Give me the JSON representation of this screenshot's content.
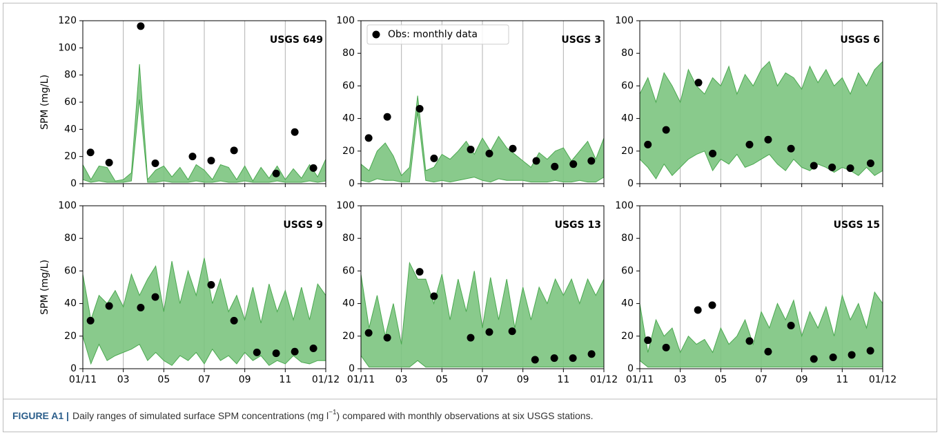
{
  "chart_data": [
    {
      "type": "range",
      "title": "USGS 649",
      "ylabel": "SPM (mg/L)",
      "xlim": [
        1,
        13
      ],
      "xticks": [
        1,
        3,
        5,
        7,
        9,
        11,
        13
      ],
      "xticklabels": false,
      "xgrid": true,
      "ylim": [
        0,
        120
      ],
      "yticks": [
        0,
        20,
        40,
        60,
        80,
        100,
        120
      ],
      "band": {
        "color": "#7cc47f",
        "edge": "#4aa84f",
        "x": [
          1,
          1.4,
          1.8,
          2.2,
          2.6,
          3,
          3.4,
          3.8,
          4.2,
          4.6,
          5,
          5.4,
          5.8,
          6.2,
          6.6,
          7,
          7.4,
          7.8,
          8.2,
          8.6,
          9,
          9.4,
          9.8,
          10.2,
          10.6,
          11,
          11.4,
          11.8,
          12.2,
          12.6,
          13
        ],
        "low": [
          3,
          1,
          2,
          1,
          1,
          1,
          2,
          62,
          1,
          1,
          2,
          1,
          1,
          1,
          2,
          1,
          1,
          2,
          1,
          1,
          2,
          1,
          1,
          1,
          2,
          1,
          1,
          1,
          2,
          1,
          2
        ],
        "high": [
          14,
          3,
          13,
          12,
          2,
          3,
          8,
          88,
          3,
          10,
          13,
          5,
          12,
          3,
          14,
          10,
          3,
          14,
          12,
          3,
          13,
          2,
          12,
          4,
          13,
          3,
          11,
          4,
          14,
          5,
          18
        ]
      },
      "series": [
        {
          "color": "#000000",
          "x": [
            1.38,
            2.3,
            3.86,
            4.58,
            6.42,
            7.34,
            8.47,
            10.55,
            11.47,
            12.39
          ],
          "values": [
            23,
            15.5,
            116,
            15,
            20,
            17,
            24.5,
            7.5,
            38,
            11.5
          ]
        }
      ]
    },
    {
      "type": "range",
      "title": "USGS 3",
      "xlim": [
        1,
        13
      ],
      "xticks": [
        1,
        3,
        5,
        7,
        9,
        11,
        13
      ],
      "xticklabels": false,
      "xgrid": true,
      "ylim": [
        0,
        100
      ],
      "yticks": [
        0,
        20,
        40,
        60,
        80,
        100
      ],
      "legend": "upper left",
      "band": {
        "color": "#7cc47f",
        "edge": "#4aa84f",
        "x": [
          1,
          1.4,
          1.8,
          2.2,
          2.6,
          3,
          3.4,
          3.8,
          4.2,
          4.6,
          5,
          5.4,
          5.8,
          6.2,
          6.6,
          7,
          7.4,
          7.8,
          8.2,
          8.6,
          9,
          9.4,
          9.8,
          10.2,
          10.6,
          11,
          11.4,
          11.8,
          12.2,
          12.6,
          13
        ],
        "low": [
          2,
          1,
          3,
          2,
          2,
          1,
          1,
          44,
          2,
          1,
          2,
          1,
          2,
          3,
          4,
          2,
          1,
          3,
          2,
          2,
          2,
          1,
          1,
          1,
          2,
          1,
          1,
          2,
          1,
          1,
          4
        ],
        "high": [
          12,
          8,
          20,
          25,
          17,
          5,
          10,
          54,
          8,
          10,
          18,
          15,
          20,
          26,
          18,
          28,
          20,
          29,
          22,
          18,
          14,
          10,
          19,
          15,
          20,
          22,
          14,
          20,
          26,
          15,
          28
        ]
      },
      "series": [
        {
          "name": "Obs: monthly data",
          "color": "#000000",
          "x": [
            1.38,
            2.3,
            3.9,
            4.61,
            6.42,
            7.34,
            8.5,
            9.66,
            10.57,
            11.49,
            12.38
          ],
          "values": [
            28,
            41,
            46,
            15.5,
            21,
            18.5,
            21.5,
            14,
            10.5,
            12,
            14
          ]
        }
      ]
    },
    {
      "type": "range",
      "title": "USGS 6",
      "xlim": [
        1,
        13
      ],
      "xticks": [
        1,
        3,
        5,
        7,
        9,
        11,
        13
      ],
      "xticklabels": false,
      "xgrid": true,
      "ylim": [
        0,
        100
      ],
      "yticks": [
        0,
        20,
        40,
        60,
        80,
        100
      ],
      "band": {
        "color": "#7cc47f",
        "edge": "#4aa84f",
        "x": [
          1,
          1.4,
          1.8,
          2.2,
          2.6,
          3,
          3.4,
          3.8,
          4.2,
          4.6,
          5,
          5.4,
          5.8,
          6.2,
          6.6,
          7,
          7.4,
          7.8,
          8.2,
          8.6,
          9,
          9.4,
          9.8,
          10.2,
          10.6,
          11,
          11.4,
          11.8,
          12.2,
          12.6,
          13
        ],
        "low": [
          15,
          10,
          3,
          12,
          5,
          10,
          15,
          18,
          20,
          8,
          15,
          12,
          18,
          10,
          12,
          15,
          18,
          12,
          8,
          15,
          10,
          8,
          12,
          10,
          7,
          10,
          8,
          5,
          10,
          5,
          8
        ],
        "high": [
          55,
          65,
          50,
          68,
          60,
          50,
          70,
          60,
          55,
          65,
          60,
          72,
          55,
          67,
          60,
          70,
          75,
          60,
          68,
          65,
          58,
          72,
          62,
          70,
          60,
          65,
          55,
          68,
          60,
          70,
          75
        ]
      },
      "series": [
        {
          "color": "#000000",
          "x": [
            1.4,
            2.3,
            3.9,
            4.6,
            6.42,
            7.34,
            8.47,
            9.6,
            10.5,
            11.4,
            12.4
          ],
          "values": [
            24,
            33,
            62,
            18.5,
            24,
            27,
            21.5,
            11,
            10,
            9.5,
            12.5
          ]
        }
      ]
    },
    {
      "type": "range",
      "title": "USGS 9",
      "ylabel": "SPM (mg/L)",
      "xlim": [
        1,
        13
      ],
      "xticks": [
        {
          "value": 1,
          "label": "01/11"
        },
        {
          "value": 3,
          "label": "03"
        },
        {
          "value": 5,
          "label": "05"
        },
        {
          "value": 7,
          "label": "07"
        },
        {
          "value": 9,
          "label": "09"
        },
        11,
        {
          "value": 13,
          "label": "01/12"
        }
      ],
      "xticklabels": true,
      "xgrid": true,
      "ylim": [
        0,
        100
      ],
      "yticks": [
        0,
        20,
        40,
        60,
        80,
        100
      ],
      "band": {
        "color": "#7cc47f",
        "edge": "#4aa84f",
        "x": [
          1,
          1.4,
          1.8,
          2.2,
          2.6,
          3,
          3.4,
          3.8,
          4.2,
          4.6,
          5,
          5.4,
          5.8,
          6.2,
          6.6,
          7,
          7.4,
          7.8,
          8.2,
          8.6,
          9,
          9.4,
          9.8,
          10.2,
          10.6,
          11,
          11.4,
          11.8,
          12.2,
          12.6,
          13
        ],
        "low": [
          20,
          3,
          15,
          5,
          8,
          10,
          12,
          15,
          5,
          10,
          5,
          2,
          8,
          5,
          10,
          3,
          12,
          5,
          8,
          3,
          10,
          5,
          8,
          2,
          5,
          3,
          8,
          4,
          3,
          5,
          5
        ],
        "high": [
          58,
          30,
          45,
          40,
          48,
          38,
          58,
          45,
          55,
          63,
          35,
          66,
          40,
          60,
          45,
          68,
          40,
          55,
          35,
          45,
          30,
          50,
          28,
          52,
          35,
          48,
          30,
          50,
          30,
          52,
          45
        ]
      },
      "series": [
        {
          "color": "#000000",
          "x": [
            1.38,
            2.3,
            3.86,
            4.58,
            7.34,
            8.47,
            9.6,
            10.55,
            11.47,
            12.39
          ],
          "values": [
            29.5,
            38.5,
            37.5,
            44,
            51.5,
            29.5,
            10,
            9.5,
            10.5,
            12.5
          ]
        }
      ]
    },
    {
      "type": "range",
      "title": "USGS 13",
      "xlim": [
        1,
        13
      ],
      "xticks": [
        {
          "value": 1,
          "label": "01/11"
        },
        {
          "value": 3,
          "label": "03"
        },
        {
          "value": 5,
          "label": "05"
        },
        {
          "value": 7,
          "label": "07"
        },
        {
          "value": 9,
          "label": "09"
        },
        11,
        {
          "value": 13,
          "label": "01/12"
        }
      ],
      "xticklabels": true,
      "xgrid": true,
      "ylim": [
        0,
        100
      ],
      "yticks": [
        0,
        20,
        40,
        60,
        80,
        100
      ],
      "band": {
        "color": "#7cc47f",
        "edge": "#4aa84f",
        "x": [
          1,
          1.4,
          1.8,
          2.2,
          2.6,
          3,
          3.4,
          3.8,
          4.2,
          4.6,
          5,
          5.4,
          5.8,
          6.2,
          6.6,
          7,
          7.4,
          7.8,
          8.2,
          8.6,
          9,
          9.4,
          9.8,
          10.2,
          10.6,
          11,
          11.4,
          11.8,
          12.2,
          12.6,
          13
        ],
        "low": [
          8,
          1,
          1,
          1,
          1,
          1,
          1,
          5,
          1,
          1,
          1,
          1,
          1,
          1,
          1,
          1,
          1,
          1,
          1,
          1,
          1,
          1,
          1,
          1,
          1,
          1,
          1,
          1,
          1,
          1,
          1
        ],
        "high": [
          58,
          25,
          45,
          20,
          40,
          15,
          65,
          55,
          55,
          40,
          58,
          30,
          55,
          35,
          60,
          25,
          56,
          30,
          55,
          25,
          50,
          30,
          50,
          40,
          55,
          45,
          55,
          40,
          55,
          45,
          55
        ]
      },
      "series": [
        {
          "color": "#000000",
          "x": [
            1.38,
            2.3,
            3.9,
            4.61,
            6.42,
            7.34,
            8.47,
            9.6,
            10.55,
            11.47,
            12.39
          ],
          "values": [
            22,
            19,
            59.5,
            44.5,
            19,
            22.5,
            23,
            5.5,
            6.5,
            6.5,
            9
          ]
        }
      ]
    },
    {
      "type": "range",
      "title": "USGS 15",
      "xlim": [
        1,
        13
      ],
      "xticks": [
        {
          "value": 1,
          "label": "01/11"
        },
        {
          "value": 3,
          "label": "03"
        },
        {
          "value": 5,
          "label": "05"
        },
        {
          "value": 7,
          "label": "07"
        },
        {
          "value": 9,
          "label": "09"
        },
        11,
        {
          "value": 13,
          "label": "01/12"
        }
      ],
      "xticklabels": true,
      "xgrid": true,
      "ylim": [
        0,
        100
      ],
      "yticks": [
        0,
        20,
        40,
        60,
        80,
        100
      ],
      "band": {
        "color": "#7cc47f",
        "edge": "#4aa84f",
        "x": [
          1,
          1.4,
          1.8,
          2.2,
          2.6,
          3,
          3.4,
          3.8,
          4.2,
          4.6,
          5,
          5.4,
          5.8,
          6.2,
          6.6,
          7,
          7.4,
          7.8,
          8.2,
          8.6,
          9,
          9.4,
          9.8,
          10.2,
          10.6,
          11,
          11.4,
          11.8,
          12.2,
          12.6,
          13
        ],
        "low": [
          5,
          1,
          1,
          1,
          1,
          1,
          1,
          1,
          1,
          1,
          1,
          1,
          1,
          1,
          1,
          1,
          1,
          1,
          1,
          1,
          1,
          1,
          1,
          1,
          1,
          1,
          1,
          1,
          1,
          1,
          1
        ],
        "high": [
          40,
          10,
          30,
          20,
          25,
          10,
          20,
          15,
          18,
          10,
          25,
          15,
          20,
          30,
          15,
          35,
          25,
          40,
          30,
          42,
          20,
          35,
          25,
          38,
          20,
          45,
          30,
          40,
          25,
          47,
          40
        ]
      },
      "series": [
        {
          "color": "#000000",
          "x": [
            1.4,
            2.3,
            3.87,
            4.58,
            6.42,
            7.34,
            8.47,
            9.6,
            10.55,
            11.47,
            12.39
          ],
          "values": [
            17.5,
            13,
            36,
            39,
            17,
            10.5,
            26.5,
            6,
            7,
            8.5,
            11
          ]
        }
      ]
    }
  ],
  "caption": {
    "label": "FIGURE A1 |",
    "text_before": "Daily ranges of simulated surface SPM concentrations (mg l",
    "superscript": "−1",
    "text_after": ") compared with monthly observations at six USGS stations."
  }
}
